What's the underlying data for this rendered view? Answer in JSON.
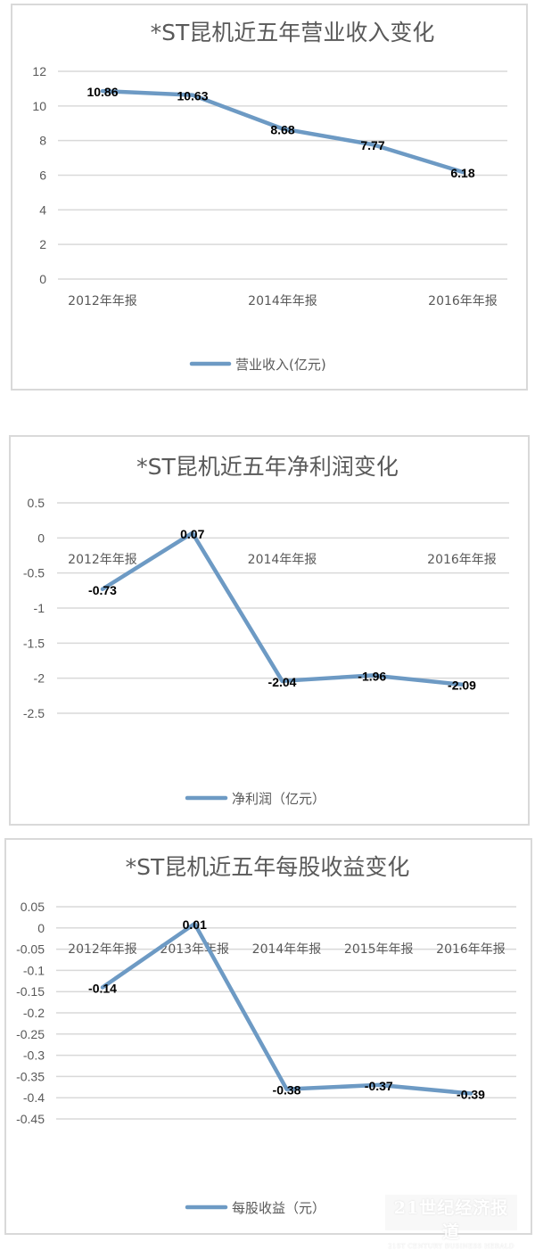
{
  "colors": {
    "line": "#6d9ac4",
    "grid": "#d9d9d9",
    "axis_text": "#595959",
    "title_text": "#595959",
    "label_text": "#000000"
  },
  "chart_data": [
    {
      "type": "line",
      "title": "*ST昆机近五年营业收入变化",
      "categories": [
        "2012年年报",
        "2013年年报",
        "2014年年报",
        "2015年年报",
        "2016年年报"
      ],
      "shown_tick_labels": [
        "2012年年报",
        "",
        "2014年年报",
        "",
        "2016年年报"
      ],
      "series": [
        {
          "name": "营业收入(亿元)",
          "values": [
            10.86,
            10.63,
            8.68,
            7.77,
            6.18
          ]
        }
      ],
      "data_labels": [
        "10.86",
        "10.63",
        "8.68",
        "7.77",
        "6.18"
      ],
      "yticks": [
        "12",
        "10",
        "8",
        "6",
        "4",
        "2",
        "0"
      ],
      "ylim": [
        0,
        12
      ],
      "ystep": 2,
      "grid": true,
      "legend": "bottom"
    },
    {
      "type": "line",
      "title": "*ST昆机近五年净利润变化",
      "categories": [
        "2012年年报",
        "2013年年报",
        "2014年年报",
        "2015年年报",
        "2016年年报"
      ],
      "shown_tick_labels": [
        "2012年年报",
        "",
        "2014年年报",
        "",
        "2016年年报"
      ],
      "series": [
        {
          "name": "净利润（亿元）",
          "values": [
            -0.73,
            0.07,
            -2.04,
            -1.96,
            -2.09
          ]
        }
      ],
      "data_labels": [
        "-0.73",
        "0.07",
        "-2.04",
        "-1.96",
        "-2.09"
      ],
      "yticks": [
        "0.5",
        "0",
        "-0.5",
        "-1",
        "-1.5",
        "-2",
        "-2.5"
      ],
      "ylim": [
        -2.5,
        0.5
      ],
      "ystep": 0.5,
      "grid": true,
      "legend": "bottom"
    },
    {
      "type": "line",
      "title": "*ST昆机近五年每股收益变化",
      "categories": [
        "2012年年报",
        "2013年年报",
        "2014年年报",
        "2015年年报",
        "2016年年报"
      ],
      "shown_tick_labels": [
        "2012年年报",
        "2013年年报",
        "2014年年报",
        "2015年年报",
        "2016年年报"
      ],
      "series": [
        {
          "name": "每股收益（元）",
          "values": [
            -0.14,
            0.01,
            -0.38,
            -0.37,
            -0.39
          ]
        }
      ],
      "data_labels": [
        "-0.14",
        "0.01",
        "-0.38",
        "-0.37",
        "-0.39"
      ],
      "yticks": [
        "0.05",
        "0",
        "-0.05",
        "-0.1",
        "-0.15",
        "-0.2",
        "-0.25",
        "-0.3",
        "-0.35",
        "-0.4",
        "-0.45"
      ],
      "ylim": [
        -0.45,
        0.05
      ],
      "ystep": 0.05,
      "grid": true,
      "legend": "bottom"
    }
  ],
  "watermark": {
    "title": "21世纪经济报道",
    "subtitle": "21ST CENTURY BUSINESS HERALD"
  }
}
